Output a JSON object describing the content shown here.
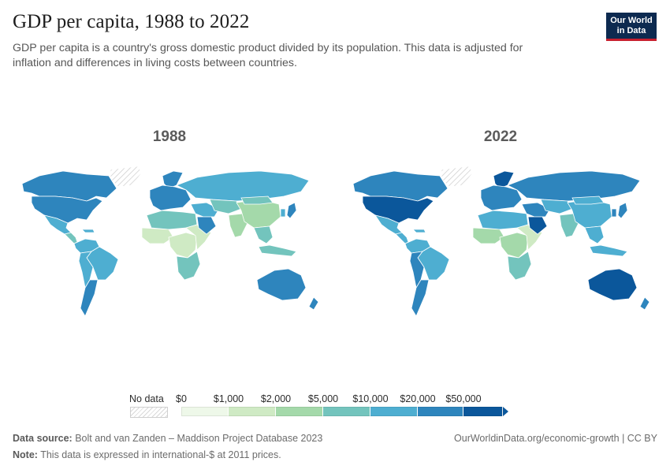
{
  "header": {
    "title": "GDP per capita, 1988 to 2022",
    "subtitle": "GDP per capita is a country's gross domestic product divided by its population. This data is adjusted for inflation and differences in living costs between countries.",
    "logo_line1": "Our World",
    "logo_line2": "in Data"
  },
  "maps": {
    "left_year": "1988",
    "right_year": "2022"
  },
  "legend": {
    "no_data_label": "No data",
    "ticks": [
      "$0",
      "$1,000",
      "$2,000",
      "$5,000",
      "$10,000",
      "$20,000",
      "$50,000"
    ],
    "colors": [
      "#eef8e9",
      "#cfeac4",
      "#a4d9aa",
      "#73c4bd",
      "#4eaed1",
      "#2e85bd",
      "#0b579b"
    ]
  },
  "footer": {
    "source_label": "Data source:",
    "source_text": "Bolt and van Zanden – Maddison Project Database 2023",
    "note_label": "Note:",
    "note_text": "This data is expressed in international-$ at 2011 prices.",
    "url": "OurWorldinData.org/economic-growth | CC BY"
  },
  "regions": {
    "1988": {
      "canada": 5,
      "usa": 5,
      "mexico": 4,
      "central_america": 3,
      "caribbean": 4,
      "south_america_north": 4,
      "brazil": 4,
      "south_america_south": 4,
      "chile_argentina": 5,
      "greenland": "nodata",
      "europe": 5,
      "scandinavia": 5,
      "russia": 4,
      "north_africa": 3,
      "west_africa": 1,
      "central_africa": 1,
      "east_africa": 1,
      "southern_africa": 3,
      "middle_east": 4,
      "saudi_arabia": 5,
      "central_asia": 3,
      "india": 2,
      "china": 2,
      "mongolia": 3,
      "japan": 5,
      "korea": 4,
      "southeast_asia": 3,
      "indonesia": 3,
      "australia": 5,
      "new_zealand": 5
    },
    "2022": {
      "canada": 5,
      "usa": 6,
      "mexico": 4,
      "central_america": 4,
      "caribbean": 4,
      "south_america_north": 4,
      "brazil": 4,
      "south_america_south": 5,
      "chile_argentina": 5,
      "greenland": "nodata",
      "europe": 5,
      "scandinavia": 6,
      "russia": 5,
      "north_africa": 4,
      "west_africa": 2,
      "central_africa": 2,
      "east_africa": 1,
      "southern_africa": 3,
      "middle_east": 5,
      "saudi_arabia": 6,
      "central_asia": 4,
      "india": 3,
      "china": 4,
      "mongolia": 4,
      "japan": 5,
      "korea": 5,
      "southeast_asia": 4,
      "indonesia": 4,
      "australia": 6,
      "new_zealand": 5
    }
  }
}
